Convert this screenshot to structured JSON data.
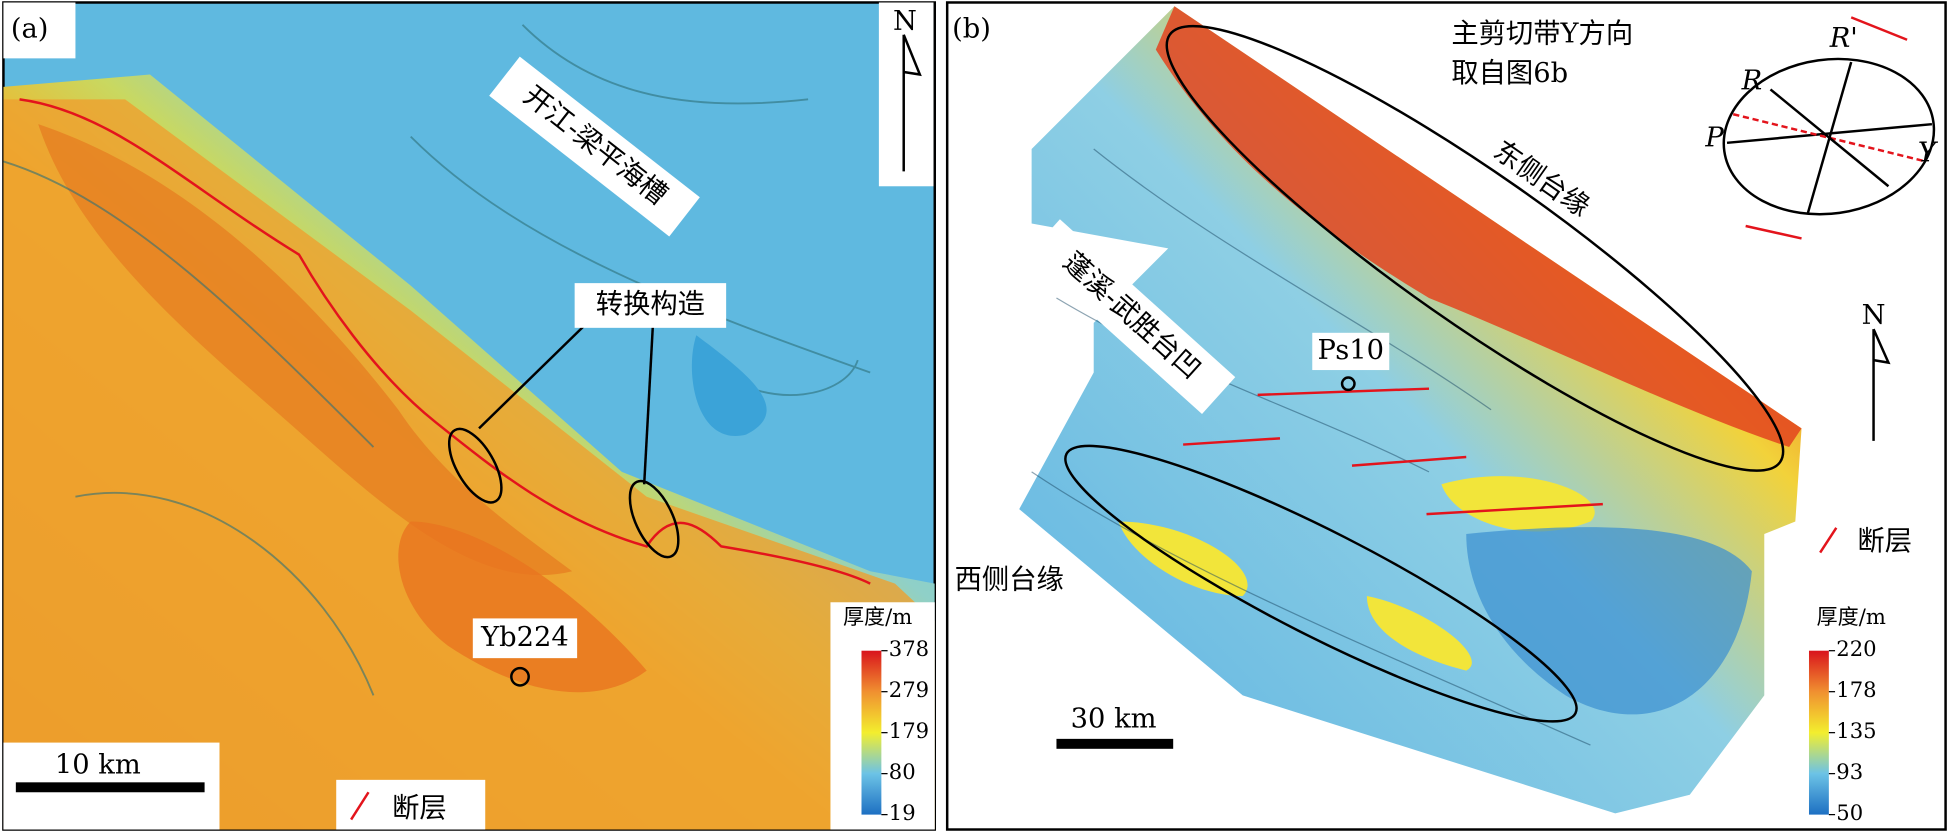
{
  "panels": [
    {
      "label": "(a)",
      "trough": "开江-梁平海槽",
      "transfer": "转换构造",
      "well": "Yb224",
      "scale": "10 km",
      "fault": "断层",
      "north": "N",
      "colorbar": {
        "title": "厚度/m",
        "ticks": [
          "378",
          "279",
          "179",
          "80",
          "19"
        ]
      }
    },
    {
      "label": "(b)",
      "note": [
        "主剪切带Y方向",
        "取自图6b"
      ],
      "east_margin": "东侧台缘",
      "depression": "蓬溪-武胜台凹",
      "well": "Ps10",
      "west_margin": "西侧台缘",
      "scale": "30 km",
      "fault": "断层",
      "north": "N",
      "shear_labels": [
        "R'",
        "R",
        "P",
        "Y"
      ],
      "colorbar": {
        "title": "厚度/m",
        "ticks": [
          "220",
          "178",
          "135",
          "93",
          "50"
        ]
      }
    }
  ]
}
